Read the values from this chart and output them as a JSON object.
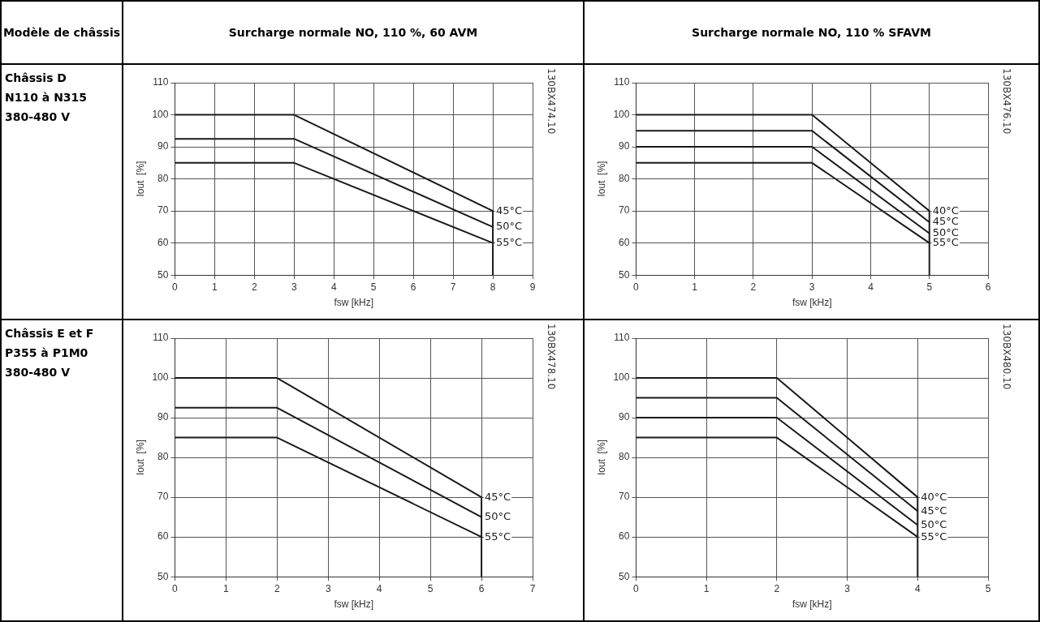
{
  "chart_data": [
    {
      "type": "other",
      "annotations": [
        "Modèle de châssis",
        "Surcharge normale NO, 110 %, 60 AVM",
        "Surcharge normale NO, 110 % SFAVM",
        "Châssis D\nN110 à N315\n380-480 V",
        "Châssis E et F\nP355 à P1M0\n380-480 V"
      ]
    },
    {
      "type": "line",
      "xlabel": "fsw [kHz]",
      "ylabel": "Iout  [%]",
      "xlim": [
        0,
        9
      ],
      "xticks": [
        0,
        1,
        2,
        3,
        4,
        5,
        6,
        7,
        8,
        9
      ],
      "ylim": [
        50,
        110
      ],
      "yticks": [
        50,
        60,
        70,
        80,
        90,
        100,
        110
      ],
      "grid": true,
      "legend": false,
      "annotations": [
        "130BX474.10"
      ],
      "series": [
        {
          "name": "45°C",
          "color": "#1a1a1a",
          "x": [
            0,
            3,
            8
          ],
          "values": [
            100,
            100,
            70
          ]
        },
        {
          "name": "50°C",
          "color": "#1a1a1a",
          "x": [
            0,
            3,
            8
          ],
          "values": [
            92.5,
            92.5,
            65
          ]
        },
        {
          "name": "55°C",
          "color": "#1a1a1a",
          "x": [
            0,
            3,
            8
          ],
          "values": [
            85,
            85,
            60
          ]
        },
        {
          "color": "#1a1a1a",
          "x": [
            8,
            8
          ],
          "values": [
            70,
            50
          ]
        }
      ]
    },
    {
      "type": "line",
      "xlabel": "fsw [kHz]",
      "ylabel": "Iout  [%]",
      "xlim": [
        0,
        6
      ],
      "xticks": [
        0,
        1,
        2,
        3,
        4,
        5,
        6
      ],
      "ylim": [
        50,
        110
      ],
      "yticks": [
        50,
        60,
        70,
        80,
        90,
        100,
        110
      ],
      "grid": true,
      "legend": false,
      "annotations": [
        "130BX476.10"
      ],
      "series": [
        {
          "name": "40°C",
          "color": "#1a1a1a",
          "x": [
            0,
            3,
            5
          ],
          "values": [
            100,
            100,
            70
          ]
        },
        {
          "name": "45°C",
          "color": "#1a1a1a",
          "x": [
            0,
            3,
            5
          ],
          "values": [
            95,
            95,
            66.5
          ]
        },
        {
          "name": "50°C",
          "color": "#1a1a1a",
          "x": [
            0,
            3,
            5
          ],
          "values": [
            90,
            90,
            63
          ]
        },
        {
          "name": "55°C",
          "color": "#1a1a1a",
          "x": [
            0,
            3,
            5
          ],
          "values": [
            85,
            85,
            60
          ]
        },
        {
          "color": "#1a1a1a",
          "x": [
            5,
            5
          ],
          "values": [
            70,
            50
          ]
        }
      ]
    },
    {
      "type": "line",
      "xlabel": "fsw [kHz]",
      "ylabel": "Iout  [%]",
      "xlim": [
        0,
        7
      ],
      "xticks": [
        0,
        1,
        2,
        3,
        4,
        5,
        6,
        7
      ],
      "ylim": [
        50,
        110
      ],
      "yticks": [
        50,
        60,
        70,
        80,
        90,
        100,
        110
      ],
      "grid": true,
      "legend": false,
      "annotations": [
        "130BX478.10"
      ],
      "series": [
        {
          "name": "45°C",
          "color": "#1a1a1a",
          "x": [
            0,
            2,
            6
          ],
          "values": [
            100,
            100,
            70
          ]
        },
        {
          "name": "50°C",
          "color": "#1a1a1a",
          "x": [
            0,
            2,
            6
          ],
          "values": [
            92.5,
            92.5,
            65
          ]
        },
        {
          "name": "55°C",
          "color": "#1a1a1a",
          "x": [
            0,
            2,
            6
          ],
          "values": [
            85,
            85,
            60
          ]
        },
        {
          "color": "#1a1a1a",
          "x": [
            6,
            6
          ],
          "values": [
            70,
            50
          ]
        }
      ]
    },
    {
      "type": "line",
      "xlabel": "fsw [kHz]",
      "ylabel": "Iout  [%]",
      "xlim": [
        0,
        5
      ],
      "xticks": [
        0,
        1,
        2,
        3,
        4,
        5
      ],
      "ylim": [
        50,
        110
      ],
      "yticks": [
        50,
        60,
        70,
        80,
        90,
        100,
        110
      ],
      "grid": true,
      "legend": false,
      "annotations": [
        "130BX480.10"
      ],
      "series": [
        {
          "name": "40°C",
          "color": "#1a1a1a",
          "x": [
            0,
            2,
            4
          ],
          "values": [
            100,
            100,
            70
          ]
        },
        {
          "name": "45°C",
          "color": "#1a1a1a",
          "x": [
            0,
            2,
            4
          ],
          "values": [
            95,
            95,
            66.5
          ]
        },
        {
          "name": "50°C",
          "color": "#1a1a1a",
          "x": [
            0,
            2,
            4
          ],
          "values": [
            90,
            90,
            63
          ]
        },
        {
          "name": "55°C",
          "color": "#1a1a1a",
          "x": [
            0,
            2,
            4
          ],
          "values": [
            85,
            85,
            60
          ]
        },
        {
          "color": "#1a1a1a",
          "x": [
            4,
            4
          ],
          "values": [
            70,
            50
          ]
        }
      ]
    }
  ]
}
